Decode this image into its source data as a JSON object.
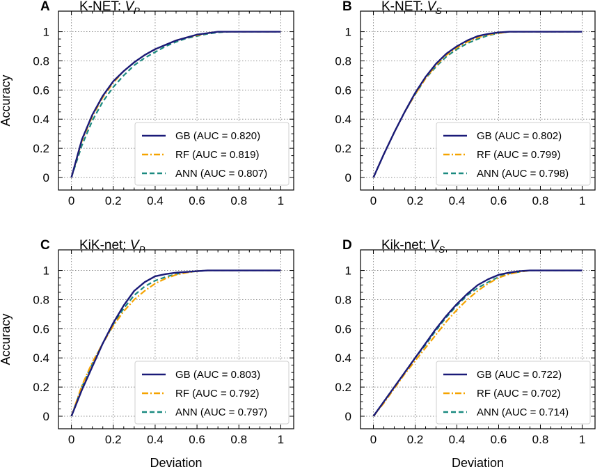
{
  "chart_data": [
    {
      "type": "line",
      "panel_label": "A",
      "title": "K-NET: ",
      "title_var": "V",
      "title_sub": "P",
      "xlabel": "",
      "ylabel": "Accuracy",
      "xlim": [
        0,
        1
      ],
      "ylim": [
        0,
        1
      ],
      "xticks": [
        0,
        0.2,
        0.4,
        0.6,
        0.8,
        1
      ],
      "xtick_labels": [
        "0",
        "0.2",
        "0.4",
        "0.6",
        "0.8",
        "1"
      ],
      "yticks": [
        0,
        0.2,
        0.4,
        0.6,
        0.8,
        1
      ],
      "ytick_labels": [
        "0",
        "0.2",
        "0.4",
        "0.6",
        "0.8",
        "1"
      ],
      "grid": true,
      "legend_position": "bottom-right",
      "series": [
        {
          "name": "GB (AUC = 0.820)",
          "color": "#1a1a78",
          "style": "solid",
          "x": [
            0,
            0.05,
            0.1,
            0.15,
            0.2,
            0.25,
            0.3,
            0.35,
            0.4,
            0.45,
            0.5,
            0.55,
            0.6,
            0.65,
            0.7,
            0.75,
            0.8,
            1.0
          ],
          "y": [
            0,
            0.26,
            0.43,
            0.56,
            0.66,
            0.73,
            0.79,
            0.84,
            0.88,
            0.91,
            0.94,
            0.96,
            0.98,
            0.99,
            1.0,
            1.0,
            1.0,
            1.0
          ]
        },
        {
          "name": "RF (AUC = 0.819)",
          "color": "#f5a300",
          "style": "dashdot",
          "x": [
            0,
            0.05,
            0.1,
            0.15,
            0.2,
            0.25,
            0.3,
            0.35,
            0.4,
            0.45,
            0.5,
            0.55,
            0.6,
            0.65,
            0.7,
            0.75,
            0.8,
            1.0
          ],
          "y": [
            0,
            0.25,
            0.42,
            0.55,
            0.65,
            0.73,
            0.79,
            0.84,
            0.88,
            0.91,
            0.94,
            0.96,
            0.975,
            0.99,
            1.0,
            1.0,
            1.0,
            1.0
          ]
        },
        {
          "name": "ANN (AUC = 0.807)",
          "color": "#1b8a80",
          "style": "dashed",
          "x": [
            0,
            0.05,
            0.1,
            0.15,
            0.2,
            0.25,
            0.3,
            0.35,
            0.4,
            0.45,
            0.5,
            0.55,
            0.6,
            0.65,
            0.7,
            0.75,
            0.8,
            1.0
          ],
          "y": [
            0,
            0.22,
            0.39,
            0.52,
            0.62,
            0.7,
            0.77,
            0.82,
            0.86,
            0.9,
            0.93,
            0.955,
            0.97,
            0.985,
            0.995,
            1.0,
            1.0,
            1.0
          ]
        }
      ]
    },
    {
      "type": "line",
      "panel_label": "B",
      "title": "K-NET: ",
      "title_var": "V",
      "title_sub": "S",
      "xlabel": "",
      "ylabel": "",
      "xlim": [
        0,
        1
      ],
      "ylim": [
        0,
        1
      ],
      "xticks": [
        0,
        0.2,
        0.4,
        0.6,
        0.8,
        1
      ],
      "xtick_labels": [
        "0",
        "0.2",
        "0.4",
        "0.6",
        "0.8",
        "1"
      ],
      "yticks": [
        0,
        0.2,
        0.4,
        0.6,
        0.8,
        1
      ],
      "ytick_labels": [
        "0",
        "0.2",
        "0.4",
        "0.6",
        "0.8",
        "1"
      ],
      "grid": true,
      "legend_position": "bottom-right",
      "series": [
        {
          "name": "GB (AUC = 0.802)",
          "color": "#1a1a78",
          "style": "solid",
          "x": [
            0,
            0.05,
            0.1,
            0.15,
            0.2,
            0.25,
            0.3,
            0.35,
            0.4,
            0.45,
            0.5,
            0.55,
            0.6,
            0.65,
            0.7,
            0.75,
            0.8,
            1.0
          ],
          "y": [
            0,
            0.16,
            0.31,
            0.45,
            0.58,
            0.69,
            0.78,
            0.85,
            0.9,
            0.94,
            0.97,
            0.985,
            0.995,
            1.0,
            1.0,
            1.0,
            1.0,
            1.0
          ]
        },
        {
          "name": "RF (AUC = 0.799)",
          "color": "#f5a300",
          "style": "dashdot",
          "x": [
            0,
            0.05,
            0.1,
            0.15,
            0.2,
            0.25,
            0.3,
            0.35,
            0.4,
            0.45,
            0.5,
            0.55,
            0.6,
            0.65,
            0.7,
            0.75,
            0.8,
            1.0
          ],
          "y": [
            0,
            0.16,
            0.31,
            0.45,
            0.57,
            0.68,
            0.77,
            0.84,
            0.89,
            0.93,
            0.96,
            0.98,
            0.99,
            1.0,
            1.0,
            1.0,
            1.0,
            1.0
          ]
        },
        {
          "name": "ANN (AUC = 0.798)",
          "color": "#1b8a80",
          "style": "dashed",
          "x": [
            0,
            0.05,
            0.1,
            0.15,
            0.2,
            0.25,
            0.3,
            0.35,
            0.4,
            0.45,
            0.5,
            0.55,
            0.6,
            0.65,
            0.7,
            0.75,
            0.8,
            1.0
          ],
          "y": [
            0,
            0.16,
            0.31,
            0.45,
            0.57,
            0.68,
            0.76,
            0.83,
            0.88,
            0.92,
            0.95,
            0.975,
            0.99,
            1.0,
            1.0,
            1.0,
            1.0,
            1.0
          ]
        }
      ]
    },
    {
      "type": "line",
      "panel_label": "C",
      "title": "KiK-net: ",
      "title_var": "V",
      "title_sub": "P",
      "xlabel": "Deviation",
      "ylabel": "Accuracy",
      "xlim": [
        0,
        1
      ],
      "ylim": [
        0,
        1
      ],
      "xticks": [
        0,
        0.2,
        0.4,
        0.6,
        0.8,
        1
      ],
      "xtick_labels": [
        "0",
        "0.2",
        "0.4",
        "0.6",
        "0.8",
        "1"
      ],
      "yticks": [
        0,
        0.2,
        0.4,
        0.6,
        0.8,
        1
      ],
      "ytick_labels": [
        "0",
        "0.2",
        "0.4",
        "0.6",
        "0.8",
        "1"
      ],
      "grid": true,
      "legend_position": "bottom-right",
      "series": [
        {
          "name": "GB (AUC = 0.803)",
          "color": "#1a1a78",
          "style": "solid",
          "x": [
            0,
            0.05,
            0.1,
            0.15,
            0.2,
            0.25,
            0.3,
            0.35,
            0.4,
            0.45,
            0.5,
            0.55,
            0.6,
            0.65,
            0.7,
            0.75,
            0.8,
            1.0
          ],
          "y": [
            0,
            0.18,
            0.34,
            0.5,
            0.64,
            0.76,
            0.86,
            0.92,
            0.96,
            0.975,
            0.985,
            0.99,
            0.995,
            1.0,
            1.0,
            1.0,
            1.0,
            1.0
          ]
        },
        {
          "name": "RF (AUC = 0.792)",
          "color": "#f5a300",
          "style": "dashdot",
          "x": [
            0,
            0.05,
            0.1,
            0.15,
            0.2,
            0.25,
            0.3,
            0.35,
            0.4,
            0.45,
            0.5,
            0.55,
            0.6,
            0.65,
            0.7,
            0.75,
            0.8,
            1.0
          ],
          "y": [
            0,
            0.21,
            0.37,
            0.5,
            0.62,
            0.72,
            0.8,
            0.86,
            0.91,
            0.945,
            0.97,
            0.985,
            0.995,
            1.0,
            1.0,
            1.0,
            1.0,
            1.0
          ]
        },
        {
          "name": "ANN (AUC = 0.797)",
          "color": "#1b8a80",
          "style": "dashed",
          "x": [
            0,
            0.05,
            0.1,
            0.15,
            0.2,
            0.25,
            0.3,
            0.35,
            0.4,
            0.45,
            0.5,
            0.55,
            0.6,
            0.65,
            0.7,
            0.75,
            0.8,
            1.0
          ],
          "y": [
            0,
            0.2,
            0.36,
            0.5,
            0.63,
            0.74,
            0.83,
            0.89,
            0.93,
            0.955,
            0.975,
            0.988,
            0.995,
            1.0,
            1.0,
            1.0,
            1.0,
            1.0
          ]
        }
      ]
    },
    {
      "type": "line",
      "panel_label": "D",
      "title": "Kik-net: ",
      "title_var": "V",
      "title_sub": "S",
      "xlabel": "Deviation",
      "ylabel": "",
      "xlim": [
        0,
        1
      ],
      "ylim": [
        0,
        1
      ],
      "xticks": [
        0,
        0.2,
        0.4,
        0.6,
        0.8,
        1
      ],
      "xtick_labels": [
        "0",
        "0.2",
        "0.4",
        "0.6",
        "0.8",
        "1"
      ],
      "yticks": [
        0,
        0.2,
        0.4,
        0.6,
        0.8,
        1
      ],
      "ytick_labels": [
        "0",
        "0.2",
        "0.4",
        "0.6",
        "0.8",
        "1"
      ],
      "grid": true,
      "legend_position": "bottom-right",
      "series": [
        {
          "name": "GB (AUC = 0.722)",
          "color": "#1a1a78",
          "style": "solid",
          "x": [
            0,
            0.05,
            0.1,
            0.15,
            0.2,
            0.25,
            0.3,
            0.35,
            0.4,
            0.45,
            0.5,
            0.55,
            0.6,
            0.65,
            0.7,
            0.75,
            0.8,
            1.0
          ],
          "y": [
            0,
            0.1,
            0.2,
            0.3,
            0.4,
            0.5,
            0.6,
            0.69,
            0.77,
            0.84,
            0.9,
            0.94,
            0.97,
            0.985,
            0.995,
            1.0,
            1.0,
            1.0
          ]
        },
        {
          "name": "RF (AUC = 0.702)",
          "color": "#f5a300",
          "style": "dashdot",
          "x": [
            0,
            0.05,
            0.1,
            0.15,
            0.2,
            0.25,
            0.3,
            0.35,
            0.4,
            0.45,
            0.5,
            0.55,
            0.6,
            0.65,
            0.7,
            0.75,
            0.8,
            1.0
          ],
          "y": [
            0,
            0.09,
            0.19,
            0.29,
            0.38,
            0.47,
            0.56,
            0.65,
            0.73,
            0.8,
            0.86,
            0.91,
            0.95,
            0.975,
            0.99,
            1.0,
            1.0,
            1.0
          ]
        },
        {
          "name": "ANN (AUC = 0.714)",
          "color": "#1b8a80",
          "style": "dashed",
          "x": [
            0,
            0.05,
            0.1,
            0.15,
            0.2,
            0.25,
            0.3,
            0.35,
            0.4,
            0.45,
            0.5,
            0.55,
            0.6,
            0.65,
            0.7,
            0.75,
            0.8,
            1.0
          ],
          "y": [
            0,
            0.1,
            0.2,
            0.3,
            0.4,
            0.49,
            0.59,
            0.68,
            0.76,
            0.83,
            0.88,
            0.92,
            0.955,
            0.98,
            0.99,
            1.0,
            1.0,
            1.0
          ]
        }
      ]
    }
  ]
}
